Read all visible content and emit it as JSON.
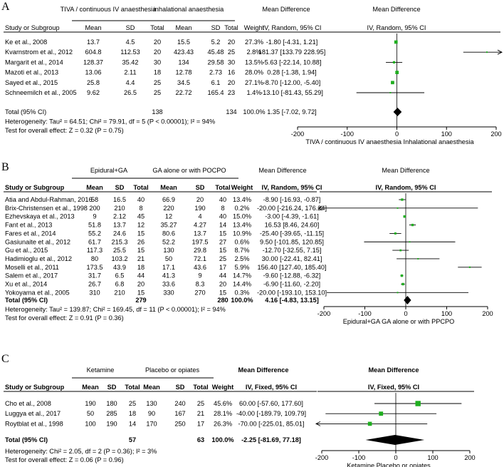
{
  "chart_data": [
    {
      "type": "forest",
      "panel": "A",
      "top_labels": {
        "exp": "TIVA / continuous IV anaesthesia",
        "ctl": "inhalational anaesthesia",
        "md": "Mean Difference",
        "fig": "Mean Difference"
      },
      "col_headers": [
        "Study or Subgroup",
        "Mean",
        "SD",
        "Total",
        "Mean",
        "SD",
        "Total",
        "Weight",
        "IV, Random, 95% CI",
        "IV, Random, 95% CI"
      ],
      "studies": [
        {
          "name": "Ke et al., 2008",
          "m1": "13.7",
          "sd1": "4.5",
          "n1": "20",
          "m2": "15.5",
          "sd2": "5.2",
          "n2": "20",
          "weight": "27.3%",
          "ci": "-1.80 [-4.31, 1.21]",
          "md": -1.8,
          "lo": -4.31,
          "hi": 1.21,
          "w": 27.3
        },
        {
          "name": "Kvarnstrom et al., 2012",
          "m1": "604.8",
          "sd1": "112.53",
          "n1": "20",
          "m2": "423.43",
          "sd2": "45.48",
          "n2": "25",
          "weight": "2.8%",
          "ci": "181.37 [133.79 228.95]",
          "md": 181.37,
          "lo": 133.79,
          "hi": 228.95,
          "w": 2.8
        },
        {
          "name": "Margarit et al., 2014",
          "m1": "128.37",
          "sd1": "35.42",
          "n1": "30",
          "m2": "134",
          "sd2": "29.58",
          "n2": "30",
          "weight": "13.5%",
          "ci": "-5.63 [-22.14, 10.88]",
          "md": -5.63,
          "lo": -22.14,
          "hi": 10.88,
          "w": 13.5
        },
        {
          "name": "Mazoti et al., 2013",
          "m1": "13.06",
          "sd1": "2.11",
          "n1": "18",
          "m2": "12.78",
          "sd2": "2.73",
          "n2": "16",
          "weight": "28.0%",
          "ci": "0.28 [-1.38, 1.94]",
          "md": 0.28,
          "lo": -1.38,
          "hi": 1.94,
          "w": 28.0
        },
        {
          "name": "Sayed et al., 2015",
          "m1": "25.8",
          "sd1": "4.4",
          "n1": "25",
          "m2": "34.5",
          "sd2": "6.1",
          "n2": "20",
          "weight": "27.1%",
          "ci": "-8.70 [-12.00, -5.40]",
          "md": -8.7,
          "lo": -12.0,
          "hi": -5.4,
          "w": 27.1
        },
        {
          "name": "Schneemilch et al., 2005",
          "m1": "9.62",
          "sd1": "26.5",
          "n1": "25",
          "m2": "22.72",
          "sd2": "165.4",
          "n2": "23",
          "weight": "1.4%",
          "ci": "-13.10 [-81.43, 55.29]",
          "md": -13.1,
          "lo": -81.43,
          "hi": 55.29,
          "w": 1.4
        }
      ],
      "total": {
        "label": "Total (95% CI)",
        "n1": "138",
        "n2": "134",
        "weight": "100.0%",
        "ci": "1.35 [-7.02, 9.72]",
        "md": 1.35,
        "lo": -7.02,
        "hi": 9.72
      },
      "heterogeneity": "Heterogeneity: Tau² = 64.51; Chi² = 79.91, df = 5 (P < 0.00001); I² = 94%",
      "overall": "Test for overall effect: Z = 0.32 (P = 0.75)",
      "xlim": [
        -200,
        200
      ],
      "ticks": [
        "-200",
        "-100",
        "0",
        "100",
        "200"
      ],
      "tick_values": [
        -200,
        -100,
        0,
        100,
        200
      ],
      "favours": "TIVA / continuous IV anaesthesia   Inhalational anaesthesia"
    },
    {
      "type": "forest",
      "panel": "B",
      "top_labels": {
        "exp": "Epidural+GA",
        "ctl": "GA alone or with POCPO",
        "md": "Mean Difference",
        "fig": "Mean Difference"
      },
      "col_headers": [
        "Study or Subgroup",
        "Mean",
        "SD",
        "Total",
        "Mean",
        "SD",
        "Total",
        "Weight",
        "IV, Random, 95% CI",
        "IV, Random, 95% CI"
      ],
      "studies": [
        {
          "name": "Atia and Abdul-Rahman, 2016",
          "m1": "58",
          "sd1": "16.5",
          "n1": "40",
          "m2": "66.9",
          "sd2": "20",
          "n2": "40",
          "weight": "13.4%",
          "ci": "-8.90 [-16.93, -0.87]",
          "md": -8.9,
          "lo": -16.93,
          "hi": -0.87,
          "w": 13.4
        },
        {
          "name": "Brix-Christensen et al., 1998",
          "m1": "200",
          "sd1": "210",
          "n1": "8",
          "m2": "220",
          "sd2": "190",
          "n2": "8",
          "weight": "0.2%",
          "ci": "-20.00 [-216.24, 176.24]",
          "md": -20.0,
          "lo": -216.24,
          "hi": 176.24,
          "w": 0.2
        },
        {
          "name": "Ezhevskaya et al., 2013",
          "m1": "9",
          "sd1": "2.12",
          "n1": "45",
          "m2": "12",
          "sd2": "4",
          "n2": "40",
          "weight": "15.0%",
          "ci": "-3.00 [-4.39, -1.61]",
          "md": -3.0,
          "lo": -4.39,
          "hi": -1.61,
          "w": 15.0
        },
        {
          "name": "Fant et al., 2013",
          "m1": "51.8",
          "sd1": "13.7",
          "n1": "12",
          "m2": "35.27",
          "sd2": "4.27",
          "n2": "14",
          "weight": "13.4%",
          "ci": "16.53 [8.46, 24.60]",
          "md": 16.53,
          "lo": 8.46,
          "hi": 24.6,
          "w": 13.4
        },
        {
          "name": "Fares et al., 2014",
          "m1": "55.2",
          "sd1": "24.6",
          "n1": "15",
          "m2": "80.6",
          "sd2": "13.7",
          "n2": "15",
          "weight": "10.9%",
          "ci": "-25.40 [-39.65, -11.15]",
          "md": -25.4,
          "lo": -39.65,
          "hi": -11.15,
          "w": 10.9
        },
        {
          "name": "Gasiunaite et al., 2012",
          "m1": "61.7",
          "sd1": "215.3",
          "n1": "26",
          "m2": "52.2",
          "sd2": "197.5",
          "n2": "27",
          "weight": "0.6%",
          "ci": "9.50 [-101.85, 120.85]",
          "md": 9.5,
          "lo": -101.85,
          "hi": 120.85,
          "w": 0.6
        },
        {
          "name": "Gu et al., 2015",
          "m1": "117.3",
          "sd1": "25.5",
          "n1": "15",
          "m2": "130",
          "sd2": "29.8",
          "n2": "15",
          "weight": "8.7%",
          "ci": "-12.70 [-32.55, 7.15]",
          "md": -12.7,
          "lo": -32.55,
          "hi": 7.15,
          "w": 8.7
        },
        {
          "name": "Hadimioglu et al., 2012",
          "m1": "80",
          "sd1": "103.2",
          "n1": "21",
          "m2": "50",
          "sd2": "72.1",
          "n2": "25",
          "weight": "2.5%",
          "ci": "30.00 [-22.41, 82.41]",
          "md": 30.0,
          "lo": -22.41,
          "hi": 82.41,
          "w": 2.5
        },
        {
          "name": "Moselli et al., 2011",
          "m1": "173.5",
          "sd1": "43.9",
          "n1": "18",
          "m2": "17.1",
          "sd2": "43.6",
          "n2": "17",
          "weight": "5.9%",
          "ci": "156.40 [127.40, 185.40]",
          "md": 156.4,
          "lo": 127.4,
          "hi": 185.4,
          "w": 5.9
        },
        {
          "name": "Salem et al., 2017",
          "m1": "31.7",
          "sd1": "6.5",
          "n1": "44",
          "m2": "41.3",
          "sd2": "9",
          "n2": "44",
          "weight": "14.7%",
          "ci": "-9.60 [-12.88, -6.32]",
          "md": -9.6,
          "lo": -12.88,
          "hi": -6.32,
          "w": 14.7
        },
        {
          "name": "Xu et al., 2014",
          "m1": "26.7",
          "sd1": "6.8",
          "n1": "20",
          "m2": "33.6",
          "sd2": "8.3",
          "n2": "20",
          "weight": "14.4%",
          "ci": "-6.90 [-11.60, -2.20]",
          "md": -6.9,
          "lo": -11.6,
          "hi": -2.2,
          "w": 14.4
        },
        {
          "name": "Yokoyama et al., 2005",
          "m1": "310",
          "sd1": "210",
          "n1": "15",
          "m2": "330",
          "sd2": "270",
          "n2": "15",
          "weight": "0.3%",
          "ci": "-20.00 [-193.10, 153.10]",
          "md": -20.0,
          "lo": -193.1,
          "hi": 153.1,
          "w": 0.3
        }
      ],
      "total": {
        "label": "Total (95% CI)",
        "n1": "279",
        "n2": "280",
        "weight": "100.0%",
        "ci": "4.16 [-4.83, 13.15]",
        "md": 4.16,
        "lo": -4.83,
        "hi": 13.15
      },
      "heterogeneity": "Heterogeneity: Tau² = 139.87; Chi² = 169.45, df = 11 (P < 0.00001); I² = 94%",
      "overall": "Test for overall effect: Z = 0.91 (P = 0.36)",
      "xlim": [
        -200,
        200
      ],
      "ticks": [
        "-200",
        "-100",
        "0",
        "100",
        "200"
      ],
      "tick_values": [
        -200,
        -100,
        0,
        100,
        200
      ],
      "favours": "Epidural+GA   GA alone or with PPCPO"
    },
    {
      "type": "forest",
      "panel": "C",
      "top_labels": {
        "exp": "Ketamine",
        "ctl": "Placebo or opiates",
        "md": "Mean Difference",
        "fig": "Mean Difference"
      },
      "col_headers": [
        "Study or Subgroup",
        "Mean",
        "SD",
        "Total",
        "Mean",
        "SD",
        "Total",
        "Weight",
        "IV, Fixed, 95% CI",
        "IV, Fixed, 95% CI"
      ],
      "studies": [
        {
          "name": "Cho et al., 2008",
          "m1": "190",
          "sd1": "180",
          "n1": "25",
          "m2": "130",
          "sd2": "240",
          "n2": "25",
          "weight": "45.6%",
          "ci": "60.00 [-57.60, 177.60]",
          "md": 60.0,
          "lo": -57.6,
          "hi": 177.6,
          "w": 45.6
        },
        {
          "name": "Luggya et al., 2017",
          "m1": "50",
          "sd1": "285",
          "n1": "18",
          "m2": "90",
          "sd2": "167",
          "n2": "21",
          "weight": "28.1%",
          "ci": "-40.00 [-189.79, 109.79]",
          "md": -40.0,
          "lo": -189.79,
          "hi": 109.79,
          "w": 28.1
        },
        {
          "name": "Roytblat et al., 1998",
          "m1": "100",
          "sd1": "190",
          "n1": "14",
          "m2": "170",
          "sd2": "250",
          "n2": "17",
          "weight": "26.3%",
          "ci": "-70.00 [-225.01, 85.01]",
          "md": -70.0,
          "lo": -225.01,
          "hi": 85.01,
          "w": 26.3
        }
      ],
      "total": {
        "label": "Total (95% CI)",
        "n1": "57",
        "n2": "63",
        "weight": "100.0%",
        "ci": "-2.25 [-81.69, 77.18]",
        "md": -2.25,
        "lo": -81.69,
        "hi": 77.18
      },
      "heterogeneity": "Heterogeneity: Chi² = 2.05, df = 2 (P = 0.36); I² = 3%",
      "overall": "Test for overall effect: Z = 0.06 (P = 0.96)",
      "xlim": [
        -200,
        200
      ],
      "ticks": [
        "-200",
        "-100",
        "0",
        "100",
        "200"
      ],
      "tick_values": [
        -200,
        -100,
        0,
        100,
        200
      ],
      "favours": "Ketamine   Placebo or opiates"
    }
  ],
  "colors": {
    "square": "#1fae1f",
    "line": "#000000",
    "diamond": "#000000"
  }
}
